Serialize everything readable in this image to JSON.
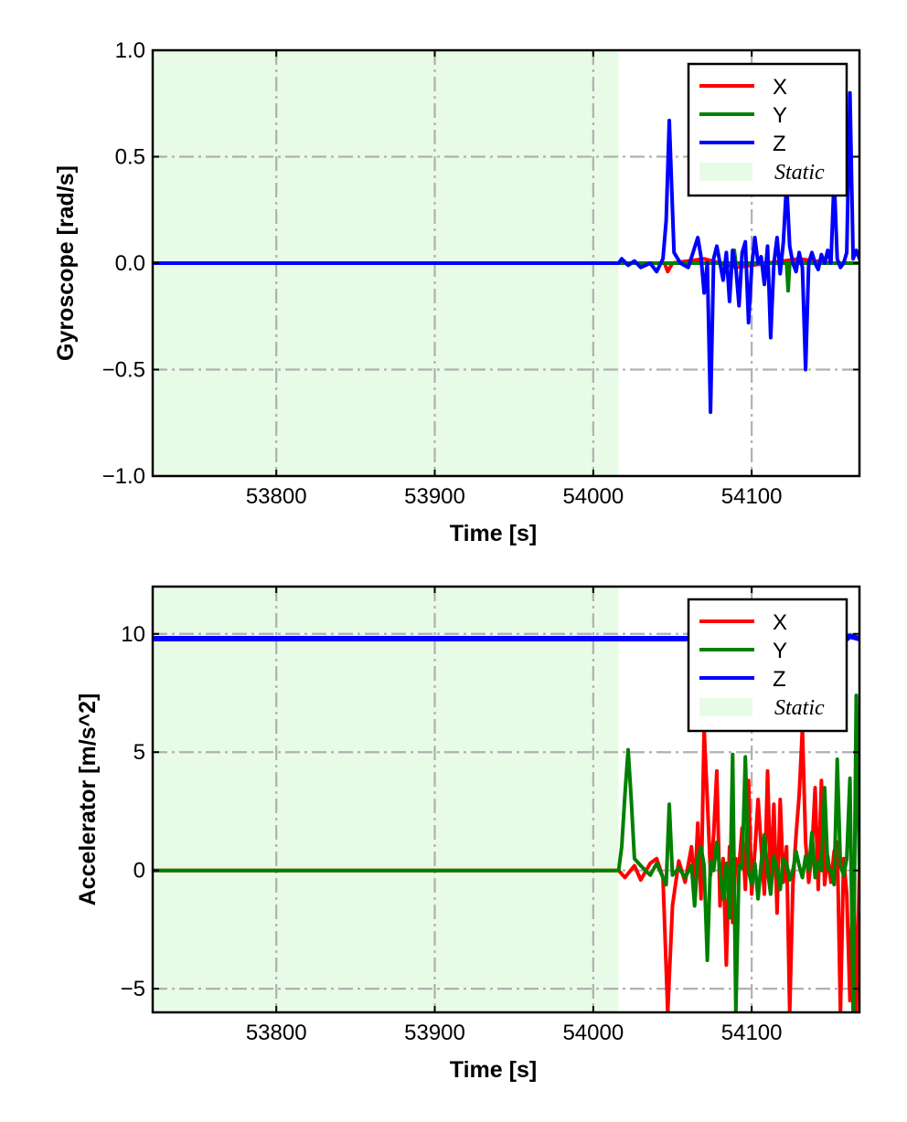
{
  "chart_data": [
    {
      "type": "line",
      "xlabel": "Time [s]",
      "ylabel": "Gyroscope [rad/s]",
      "xlim": [
        53722,
        54168
      ],
      "ylim": [
        -1.0,
        1.0
      ],
      "xticks": [
        53800,
        53900,
        54000,
        54100
      ],
      "xtick_labels": [
        "53800",
        "53900",
        "54000",
        "54100"
      ],
      "yticks": [
        -1.0,
        -0.5,
        0.0,
        0.5,
        1.0
      ],
      "ytick_labels": [
        "−1.0",
        "−0.5",
        "0.0",
        "0.5",
        "1.0"
      ],
      "grid": true,
      "legend_position": "top-right",
      "static_region": {
        "label": "Static",
        "x0": 53722,
        "x1": 54016,
        "color": "#e8fbe6"
      },
      "series": [
        {
          "name": "X",
          "color": "#ff0000",
          "x": [
            53722,
            54016,
            54030,
            54045,
            54047,
            54050,
            54070,
            54090,
            54110,
            54130,
            54150,
            54168
          ],
          "y": [
            0.0,
            0.0,
            0.0,
            0.0,
            -0.04,
            0.0,
            0.02,
            -0.02,
            0.0,
            0.02,
            0.0,
            0.0
          ]
        },
        {
          "name": "Y",
          "color": "#008000",
          "x": [
            53722,
            54016,
            54040,
            54088,
            54089,
            54090,
            54110,
            54122,
            54123,
            54124,
            54150,
            54168
          ],
          "y": [
            0.0,
            0.0,
            0.0,
            0.0,
            0.06,
            0.0,
            0.0,
            0.0,
            -0.13,
            0.0,
            0.0,
            0.0
          ],
          "values_note": ""
        },
        {
          "name": "Z",
          "color": "#0000ff",
          "x": [
            53722,
            54016,
            54018,
            54022,
            54026,
            54030,
            54036,
            54040,
            54044,
            54046,
            54048,
            54051,
            54055,
            54060,
            54063,
            54066,
            54068,
            54070,
            54072,
            54074,
            54076,
            54078,
            54080,
            54082,
            54084,
            54086,
            54088,
            54090,
            54092,
            54094,
            54096,
            54098,
            54100,
            54102,
            54104,
            54106,
            54108,
            54110,
            54112,
            54114,
            54116,
            54118,
            54120,
            54122,
            54124,
            54126,
            54128,
            54130,
            54132,
            54134,
            54136,
            54138,
            54140,
            54142,
            54144,
            54146,
            54148,
            54150,
            54152,
            54154,
            54156,
            54158,
            54160,
            54162,
            54164,
            54166,
            54168
          ],
          "y": [
            0.0,
            0.0,
            0.02,
            -0.01,
            0.01,
            -0.02,
            0.0,
            -0.04,
            0.02,
            0.2,
            0.67,
            0.05,
            0.0,
            -0.02,
            0.05,
            0.12,
            0.03,
            -0.14,
            0.0,
            -0.7,
            0.02,
            0.08,
            0.0,
            -0.08,
            0.05,
            -0.18,
            0.06,
            -0.02,
            -0.2,
            0.05,
            0.1,
            -0.28,
            -0.02,
            0.12,
            0.0,
            0.03,
            -0.1,
            0.08,
            -0.35,
            0.0,
            0.12,
            -0.05,
            0.1,
            0.38,
            0.08,
            0.0,
            -0.04,
            0.05,
            -0.02,
            -0.5,
            0.0,
            0.05,
            0.0,
            -0.03,
            0.04,
            0.0,
            0.06,
            0.0,
            0.4,
            0.02,
            -0.02,
            0.0,
            0.05,
            0.8,
            0.02,
            0.06,
            0.02
          ]
        }
      ],
      "legend": {
        "entries": [
          {
            "label": "X",
            "color": "#ff0000",
            "kind": "line"
          },
          {
            "label": "Y",
            "color": "#008000",
            "kind": "line"
          },
          {
            "label": "Z",
            "color": "#0000ff",
            "kind": "line"
          },
          {
            "label": "Static",
            "color": "#e8fbe6",
            "kind": "patch"
          }
        ]
      }
    },
    {
      "type": "line",
      "xlabel": "Time [s]",
      "ylabel": "Accelerator [m/s^2]",
      "xlim": [
        53722,
        54168
      ],
      "ylim": [
        -6.0,
        12.0
      ],
      "xticks": [
        53800,
        53900,
        54000,
        54100
      ],
      "xtick_labels": [
        "53800",
        "53900",
        "54000",
        "54100"
      ],
      "yticks": [
        -5,
        0,
        5,
        10
      ],
      "ytick_labels": [
        "−5",
        "0",
        "5",
        "10"
      ],
      "grid": true,
      "legend_position": "top-right",
      "static_region": {
        "label": "Static",
        "x0": 53722,
        "x1": 54016,
        "color": "#e8fbe6"
      },
      "series": [
        {
          "name": "Z",
          "color": "#0000ff",
          "x": [
            53722,
            53800,
            53900,
            54000,
            54016,
            54050,
            54100,
            54150,
            54160,
            54162,
            54168
          ],
          "y": [
            9.8,
            9.8,
            9.8,
            9.8,
            9.8,
            9.8,
            9.8,
            9.8,
            9.8,
            9.9,
            9.8
          ]
        },
        {
          "name": "X",
          "color": "#ff0000",
          "x": [
            53722,
            54016,
            54020,
            54026,
            54030,
            54036,
            54040,
            54044,
            54047,
            54050,
            54054,
            54058,
            54062,
            54064,
            54066,
            54068,
            54070,
            54072,
            54074,
            54076,
            54078,
            54080,
            54082,
            54084,
            54086,
            54088,
            54090,
            54092,
            54094,
            54096,
            54098,
            54100,
            54102,
            54104,
            54106,
            54108,
            54110,
            54112,
            54114,
            54116,
            54118,
            54120,
            54122,
            54124,
            54126,
            54128,
            54130,
            54132,
            54134,
            54136,
            54138,
            54140,
            54142,
            54144,
            54146,
            54148,
            54150,
            54152,
            54154,
            54156,
            54158,
            54160,
            54162,
            54164,
            54166,
            54168
          ],
          "y": [
            0.0,
            0.0,
            -0.3,
            0.2,
            -0.4,
            0.3,
            0.5,
            -0.3,
            -6.0,
            -1.5,
            0.4,
            -0.5,
            1.0,
            -0.8,
            2.0,
            -1.2,
            6.0,
            3.0,
            -0.2,
            1.5,
            4.2,
            -1.5,
            0.5,
            -4.0,
            1.0,
            -2.2,
            0.5,
            0.2,
            1.8,
            -0.8,
            3.8,
            -1.0,
            0.8,
            3.0,
            1.0,
            -1.0,
            4.2,
            -0.5,
            2.8,
            -1.8,
            3.0,
            -0.5,
            1.0,
            -6.0,
            -0.6,
            1.5,
            3.2,
            6.0,
            1.2,
            -0.5,
            0.8,
            3.5,
            -0.8,
            3.8,
            -0.6,
            0.6,
            -0.5,
            0.8,
            1.2,
            -6.0,
            0.5,
            -1.0,
            -5.5,
            0.5,
            -6.0,
            0.0
          ]
        },
        {
          "name": "Y",
          "color": "#008000",
          "x": [
            53722,
            54016,
            54018,
            54020,
            54022,
            54024,
            54026,
            54030,
            54036,
            54040,
            54044,
            54046,
            54048,
            54050,
            54054,
            54058,
            54062,
            54064,
            54066,
            54068,
            54070,
            54072,
            54074,
            54076,
            54078,
            54080,
            54082,
            54084,
            54086,
            54088,
            54090,
            54092,
            54094,
            54096,
            54098,
            54100,
            54102,
            54104,
            54106,
            54108,
            54110,
            54112,
            54114,
            54116,
            54118,
            54120,
            54122,
            54124,
            54126,
            54128,
            54130,
            54132,
            54134,
            54136,
            54138,
            54140,
            54142,
            54144,
            54146,
            54148,
            54150,
            54152,
            54154,
            54156,
            54158,
            54160,
            54162,
            54164,
            54166,
            54168
          ],
          "y": [
            0.0,
            0.0,
            1.0,
            3.2,
            5.1,
            3.0,
            0.5,
            0.2,
            -0.2,
            0.3,
            -0.3,
            -0.6,
            2.8,
            -0.2,
            0.1,
            -0.3,
            0.2,
            -1.5,
            0.5,
            1.0,
            0.2,
            -3.8,
            0.4,
            0.0,
            1.2,
            0.0,
            -1.2,
            0.3,
            -2.0,
            4.9,
            -6.0,
            0.2,
            0.1,
            4.8,
            0.0,
            -0.6,
            0.3,
            -1.2,
            0.3,
            1.5,
            0.0,
            -1.0,
            0.6,
            0.0,
            -0.8,
            0.5,
            0.3,
            -0.4,
            0.0,
            0.8,
            0.2,
            -0.3,
            0.6,
            0.0,
            1.6,
            -0.3,
            0.4,
            0.0,
            3.5,
            0.1,
            0.0,
            -0.6,
            4.7,
            0.2,
            -0.2,
            0.5,
            3.9,
            -6.0,
            7.4,
            0.0
          ]
        }
      ],
      "legend": {
        "entries": [
          {
            "label": "X",
            "color": "#ff0000",
            "kind": "line"
          },
          {
            "label": "Y",
            "color": "#008000",
            "kind": "line"
          },
          {
            "label": "Z",
            "color": "#0000ff",
            "kind": "line"
          },
          {
            "label": "Static",
            "color": "#e8fbe6",
            "kind": "patch"
          }
        ]
      }
    }
  ]
}
